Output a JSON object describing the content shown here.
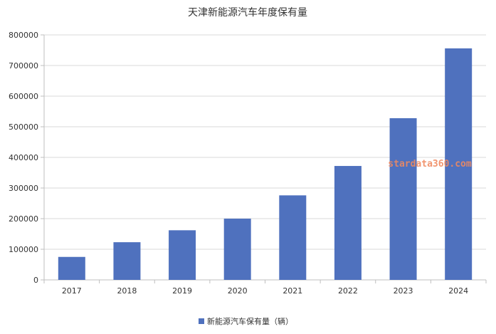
{
  "watermark": "stardata360.com",
  "colors": {
    "bar": "#4f71be",
    "grid": "#d9d9d9",
    "axis": "#bfbfbf",
    "text": "#333333",
    "watermark": "#f08a60"
  },
  "chart_data": {
    "type": "bar",
    "title": "天津新能源汽车年度保有量",
    "categories": [
      "2017",
      "2018",
      "2019",
      "2020",
      "2021",
      "2022",
      "2023",
      "2024"
    ],
    "series": [
      {
        "name": "新能源汽车保有量（辆）",
        "values": [
          75000,
          123000,
          162000,
          200000,
          276000,
          372000,
          528000,
          756000
        ]
      }
    ],
    "ylim": [
      0,
      800000
    ],
    "yticks": [
      "0",
      "100000",
      "200000",
      "300000",
      "400000",
      "500000",
      "600000",
      "700000",
      "800000"
    ],
    "grid": true,
    "legend_position": "bottom-center"
  }
}
